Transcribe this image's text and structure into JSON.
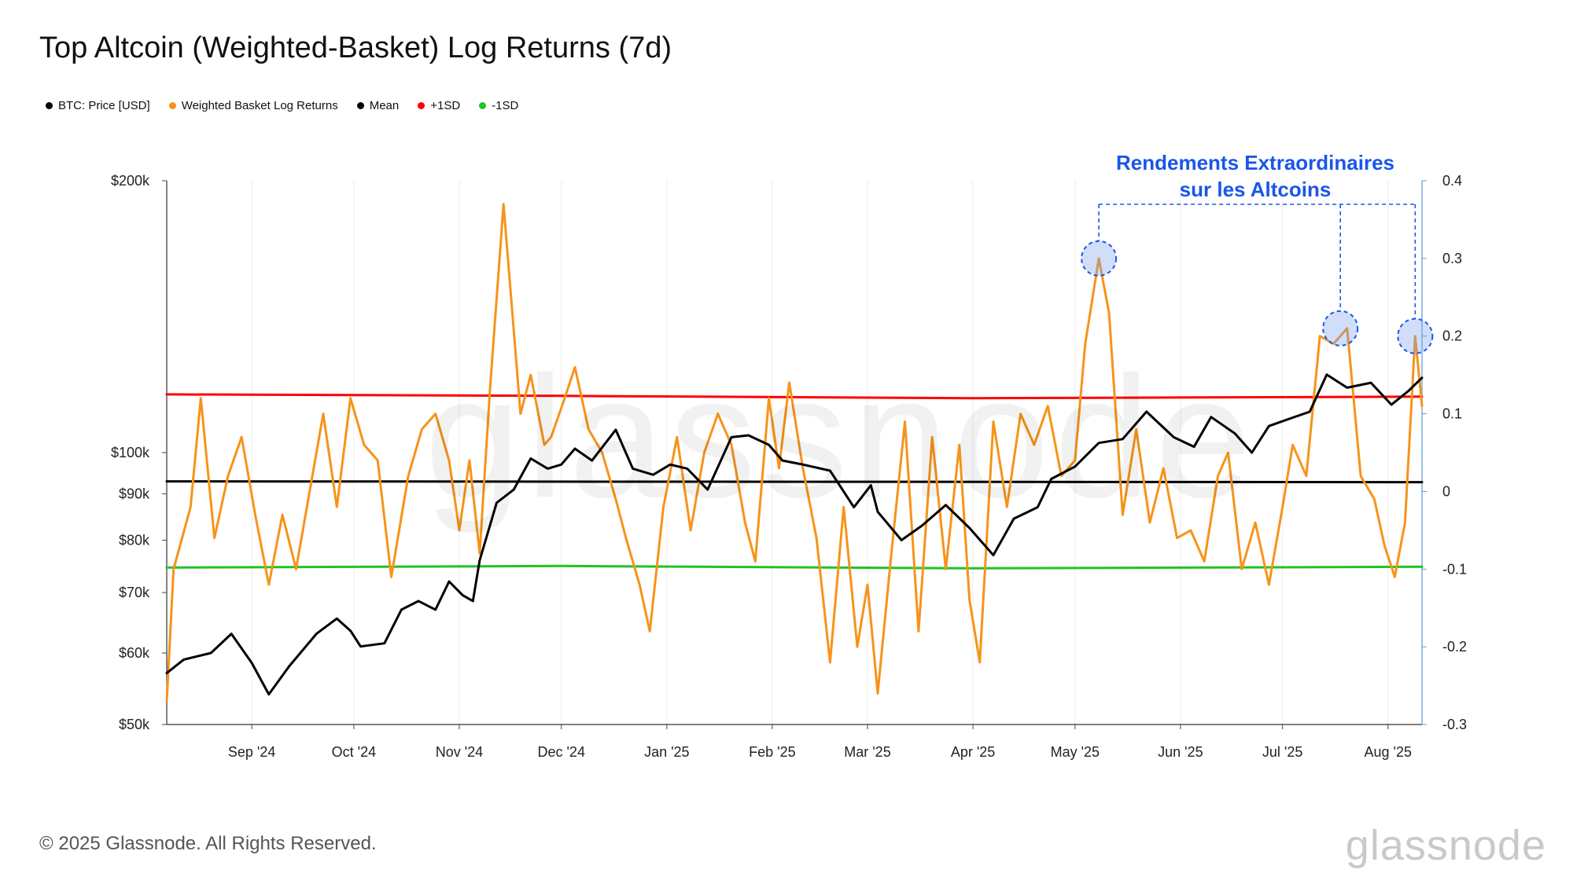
{
  "header": {
    "title": "Top Altcoin (Weighted-Basket) Log Returns (7d)"
  },
  "legend": [
    {
      "label": "BTC: Price [USD]",
      "color": "#000000"
    },
    {
      "label": "Weighted Basket Log Returns",
      "color": "#f7931a"
    },
    {
      "label": "Mean",
      "color": "#000000"
    },
    {
      "label": "+1SD",
      "color": "#ff0000"
    },
    {
      "label": "-1SD",
      "color": "#22c322"
    }
  ],
  "annotation": {
    "line1": "Rendements Extraordinaires",
    "line2": "sur les Altcoins",
    "color": "#1a56e8"
  },
  "footer": {
    "copyright": "© 2025 Glassnode. All Rights Reserved.",
    "brand": "glassnode",
    "watermark": "glassnode"
  },
  "chart_data": {
    "type": "line",
    "title": "Top Altcoin (Weighted-Basket) Log Returns (7d)",
    "x_ticks": [
      "Sep '24",
      "Oct '24",
      "Nov '24",
      "Dec '24",
      "Jan '25",
      "Feb '25",
      "Mar '25",
      "Apr '25",
      "May '25",
      "Jun '25",
      "Jul '25",
      "Aug '25"
    ],
    "x_tick_dates": [
      "2024-09-01",
      "2024-10-01",
      "2024-11-01",
      "2024-12-01",
      "2025-01-01",
      "2025-02-01",
      "2025-03-01",
      "2025-04-01",
      "2025-05-01",
      "2025-06-01",
      "2025-07-01",
      "2025-08-01"
    ],
    "x_range": [
      "2024-08-07",
      "2025-08-11"
    ],
    "left_axis": {
      "scale": "log",
      "ylim": [
        50000,
        200000
      ],
      "ticks": [
        50000,
        60000,
        70000,
        80000,
        90000,
        100000,
        200000
      ],
      "tick_labels": [
        "$50k",
        "$60k",
        "$70k",
        "$80k",
        "$90k",
        "$100k",
        "$200k"
      ]
    },
    "right_axis": {
      "scale": "linear",
      "ylim": [
        -0.3,
        0.4
      ],
      "ticks": [
        -0.3,
        -0.2,
        -0.1,
        0,
        0.1,
        0.2,
        0.3,
        0.4
      ],
      "tick_labels": [
        "-0.3",
        "-0.2",
        "-0.1",
        "0",
        "0.1",
        "0.2",
        "0.3",
        "0.4"
      ]
    },
    "series": [
      {
        "name": "BTC: Price [USD]",
        "axis": "left",
        "color": "#000000",
        "points": [
          [
            "2024-08-07",
            57000
          ],
          [
            "2024-08-12",
            59000
          ],
          [
            "2024-08-20",
            60000
          ],
          [
            "2024-08-26",
            63000
          ],
          [
            "2024-09-01",
            58500
          ],
          [
            "2024-09-06",
            54000
          ],
          [
            "2024-09-12",
            58000
          ],
          [
            "2024-09-20",
            63000
          ],
          [
            "2024-09-26",
            65500
          ],
          [
            "2024-09-30",
            63500
          ],
          [
            "2024-10-03",
            61000
          ],
          [
            "2024-10-10",
            61500
          ],
          [
            "2024-10-15",
            67000
          ],
          [
            "2024-10-20",
            68500
          ],
          [
            "2024-10-25",
            67000
          ],
          [
            "2024-10-29",
            72000
          ],
          [
            "2024-11-02",
            69500
          ],
          [
            "2024-11-05",
            68500
          ],
          [
            "2024-11-07",
            76000
          ],
          [
            "2024-11-12",
            88000
          ],
          [
            "2024-11-17",
            91000
          ],
          [
            "2024-11-22",
            98500
          ],
          [
            "2024-11-27",
            96000
          ],
          [
            "2024-12-01",
            97000
          ],
          [
            "2024-12-05",
            101000
          ],
          [
            "2024-12-10",
            98000
          ],
          [
            "2024-12-17",
            106000
          ],
          [
            "2024-12-22",
            96000
          ],
          [
            "2024-12-28",
            94500
          ],
          [
            "2025-01-02",
            97000
          ],
          [
            "2025-01-07",
            96000
          ],
          [
            "2025-01-13",
            91000
          ],
          [
            "2025-01-20",
            104000
          ],
          [
            "2025-01-25",
            104500
          ],
          [
            "2025-01-31",
            102000
          ],
          [
            "2025-02-04",
            98000
          ],
          [
            "2025-02-10",
            97000
          ],
          [
            "2025-02-18",
            95500
          ],
          [
            "2025-02-25",
            87000
          ],
          [
            "2025-03-02",
            92000
          ],
          [
            "2025-03-04",
            86000
          ],
          [
            "2025-03-11",
            80000
          ],
          [
            "2025-03-17",
            83000
          ],
          [
            "2025-03-24",
            87500
          ],
          [
            "2025-03-31",
            82500
          ],
          [
            "2025-04-07",
            77000
          ],
          [
            "2025-04-13",
            84500
          ],
          [
            "2025-04-20",
            87000
          ],
          [
            "2025-04-24",
            93500
          ],
          [
            "2025-05-01",
            96500
          ],
          [
            "2025-05-08",
            102500
          ],
          [
            "2025-05-15",
            103500
          ],
          [
            "2025-05-22",
            111000
          ],
          [
            "2025-05-30",
            104000
          ],
          [
            "2025-06-05",
            101500
          ],
          [
            "2025-06-10",
            109500
          ],
          [
            "2025-06-17",
            105000
          ],
          [
            "2025-06-22",
            100000
          ],
          [
            "2025-06-27",
            107000
          ],
          [
            "2025-07-03",
            109000
          ],
          [
            "2025-07-09",
            111000
          ],
          [
            "2025-07-14",
            122000
          ],
          [
            "2025-07-20",
            118000
          ],
          [
            "2025-07-27",
            119500
          ],
          [
            "2025-08-02",
            113000
          ],
          [
            "2025-08-07",
            117000
          ],
          [
            "2025-08-11",
            121000
          ]
        ]
      },
      {
        "name": "Weighted Basket Log Returns",
        "axis": "right",
        "color": "#f7931a",
        "points": [
          [
            "2024-08-07",
            -0.27
          ],
          [
            "2024-08-09",
            -0.1
          ],
          [
            "2024-08-14",
            -0.02
          ],
          [
            "2024-08-17",
            0.12
          ],
          [
            "2024-08-21",
            -0.06
          ],
          [
            "2024-08-25",
            0.02
          ],
          [
            "2024-08-29",
            0.07
          ],
          [
            "2024-09-02",
            -0.03
          ],
          [
            "2024-09-06",
            -0.12
          ],
          [
            "2024-09-10",
            -0.03
          ],
          [
            "2024-09-14",
            -0.1
          ],
          [
            "2024-09-18",
            0
          ],
          [
            "2024-09-22",
            0.1
          ],
          [
            "2024-09-26",
            -0.02
          ],
          [
            "2024-09-30",
            0.12
          ],
          [
            "2024-10-04",
            0.06
          ],
          [
            "2024-10-08",
            0.04
          ],
          [
            "2024-10-12",
            -0.11
          ],
          [
            "2024-10-17",
            0.02
          ],
          [
            "2024-10-21",
            0.08
          ],
          [
            "2024-10-25",
            0.1
          ],
          [
            "2024-10-29",
            0.04
          ],
          [
            "2024-11-01",
            -0.05
          ],
          [
            "2024-11-04",
            0.04
          ],
          [
            "2024-11-07",
            -0.08
          ],
          [
            "2024-11-10",
            0.13
          ],
          [
            "2024-11-14",
            0.37
          ],
          [
            "2024-11-19",
            0.1
          ],
          [
            "2024-11-22",
            0.15
          ],
          [
            "2024-11-26",
            0.06
          ],
          [
            "2024-11-28",
            0.07
          ],
          [
            "2024-12-02",
            0.12
          ],
          [
            "2024-12-05",
            0.16
          ],
          [
            "2024-12-09",
            0.08
          ],
          [
            "2024-12-13",
            0.05
          ],
          [
            "2024-12-17",
            -0.01
          ],
          [
            "2024-12-20",
            -0.06
          ],
          [
            "2024-12-24",
            -0.12
          ],
          [
            "2024-12-27",
            -0.18
          ],
          [
            "2024-12-31",
            -0.02
          ],
          [
            "2025-01-04",
            0.07
          ],
          [
            "2025-01-08",
            -0.05
          ],
          [
            "2025-01-12",
            0.05
          ],
          [
            "2025-01-16",
            0.1
          ],
          [
            "2025-01-20",
            0.06
          ],
          [
            "2025-01-24",
            -0.04
          ],
          [
            "2025-01-27",
            -0.09
          ],
          [
            "2025-01-31",
            0.12
          ],
          [
            "2025-02-03",
            0.03
          ],
          [
            "2025-02-06",
            0.14
          ],
          [
            "2025-02-10",
            0.03
          ],
          [
            "2025-02-14",
            -0.06
          ],
          [
            "2025-02-18",
            -0.22
          ],
          [
            "2025-02-22",
            -0.02
          ],
          [
            "2025-02-26",
            -0.2
          ],
          [
            "2025-03-01",
            -0.12
          ],
          [
            "2025-03-04",
            -0.26
          ],
          [
            "2025-03-08",
            -0.08
          ],
          [
            "2025-03-12",
            0.09
          ],
          [
            "2025-03-16",
            -0.18
          ],
          [
            "2025-03-20",
            0.07
          ],
          [
            "2025-03-24",
            -0.1
          ],
          [
            "2025-03-28",
            0.06
          ],
          [
            "2025-03-31",
            -0.14
          ],
          [
            "2025-04-03",
            -0.22
          ],
          [
            "2025-04-07",
            0.09
          ],
          [
            "2025-04-11",
            -0.02
          ],
          [
            "2025-04-15",
            0.1
          ],
          [
            "2025-04-19",
            0.06
          ],
          [
            "2025-04-23",
            0.11
          ],
          [
            "2025-04-27",
            0.02
          ],
          [
            "2025-05-01",
            0.04
          ],
          [
            "2025-05-04",
            0.19
          ],
          [
            "2025-05-08",
            0.3
          ],
          [
            "2025-05-11",
            0.23
          ],
          [
            "2025-05-15",
            -0.03
          ],
          [
            "2025-05-19",
            0.08
          ],
          [
            "2025-05-23",
            -0.04
          ],
          [
            "2025-05-27",
            0.03
          ],
          [
            "2025-05-31",
            -0.06
          ],
          [
            "2025-06-04",
            -0.05
          ],
          [
            "2025-06-08",
            -0.09
          ],
          [
            "2025-06-12",
            0.02
          ],
          [
            "2025-06-15",
            0.05
          ],
          [
            "2025-06-19",
            -0.1
          ],
          [
            "2025-06-23",
            -0.04
          ],
          [
            "2025-06-27",
            -0.12
          ],
          [
            "2025-07-01",
            -0.02
          ],
          [
            "2025-07-04",
            0.06
          ],
          [
            "2025-07-08",
            0.02
          ],
          [
            "2025-07-12",
            0.2
          ],
          [
            "2025-07-16",
            0.19
          ],
          [
            "2025-07-20",
            0.21
          ],
          [
            "2025-07-24",
            0.02
          ],
          [
            "2025-07-28",
            -0.01
          ],
          [
            "2025-07-31",
            -0.07
          ],
          [
            "2025-08-03",
            -0.11
          ],
          [
            "2025-08-06",
            -0.04
          ],
          [
            "2025-08-09",
            0.2
          ],
          [
            "2025-08-11",
            0.11
          ]
        ]
      },
      {
        "name": "Mean",
        "axis": "right",
        "color": "#000000",
        "points": [
          [
            "2024-08-07",
            0.013
          ],
          [
            "2025-08-11",
            0.012
          ]
        ]
      },
      {
        "name": "+1SD",
        "axis": "right",
        "color": "#ff0000",
        "points": [
          [
            "2024-08-07",
            0.125
          ],
          [
            "2024-12-01",
            0.123
          ],
          [
            "2025-04-01",
            0.12
          ],
          [
            "2025-08-11",
            0.122
          ]
        ]
      },
      {
        "name": "-1SD",
        "axis": "right",
        "color": "#22c322",
        "points": [
          [
            "2024-08-07",
            -0.098
          ],
          [
            "2024-12-01",
            -0.096
          ],
          [
            "2025-04-01",
            -0.099
          ],
          [
            "2025-08-11",
            -0.097
          ]
        ]
      }
    ],
    "highlights": [
      {
        "date": "2025-05-08",
        "value": 0.3
      },
      {
        "date": "2025-07-18",
        "value": 0.21
      },
      {
        "date": "2025-08-09",
        "value": 0.2
      }
    ],
    "grid": "vertical"
  }
}
